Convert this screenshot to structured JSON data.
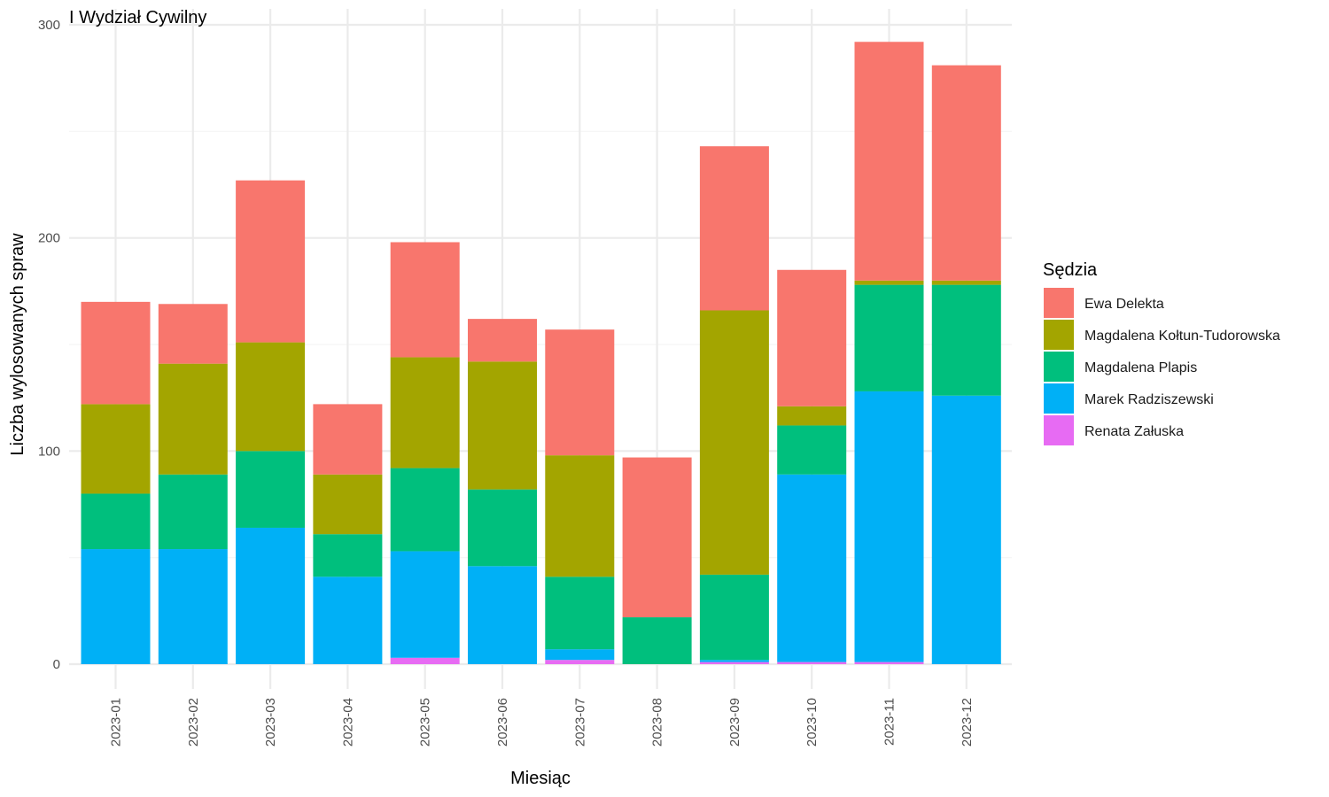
{
  "chart_data": {
    "type": "bar",
    "stacked": true,
    "title": "I Wydział Cywilny",
    "xlabel": "Miesiąc",
    "ylabel": "Liczba wylosowanych spraw",
    "ylim": [
      0,
      300
    ],
    "yticks": [
      0,
      100,
      200,
      300
    ],
    "grid": true,
    "legend_title": "Sędzia",
    "legend_position": "right",
    "categories": [
      "2023-01",
      "2023-02",
      "2023-03",
      "2023-04",
      "2023-05",
      "2023-06",
      "2023-07",
      "2023-08",
      "2023-09",
      "2023-10",
      "2023-11",
      "2023-12"
    ],
    "stack_order_bottom_to_top": [
      "Renata Załuska",
      "Marek Radziszewski",
      "Magdalena Plapis",
      "Magdalena Kołtun-Tudorowska",
      "Ewa Delekta"
    ],
    "series": [
      {
        "name": "Ewa Delekta",
        "color": "#F8766D",
        "values": [
          48,
          28,
          76,
          33,
          54,
          20,
          59,
          75,
          77,
          64,
          112,
          101
        ]
      },
      {
        "name": "Magdalena Kołtun-Tudorowska",
        "color": "#A3A500",
        "values": [
          42,
          52,
          51,
          28,
          52,
          60,
          57,
          0,
          124,
          9,
          2,
          2
        ]
      },
      {
        "name": "Magdalena Plapis",
        "color": "#00BF7D",
        "values": [
          26,
          35,
          36,
          20,
          39,
          36,
          34,
          22,
          40,
          23,
          50,
          52
        ]
      },
      {
        "name": "Marek Radziszewski",
        "color": "#00B0F6",
        "values": [
          54,
          54,
          64,
          41,
          50,
          46,
          5,
          0,
          1,
          88,
          127,
          126
        ]
      },
      {
        "name": "Renata Załuska",
        "color": "#E76BF3",
        "values": [
          0,
          0,
          0,
          0,
          3,
          0,
          2,
          0,
          1,
          1,
          1,
          0
        ]
      }
    ]
  }
}
